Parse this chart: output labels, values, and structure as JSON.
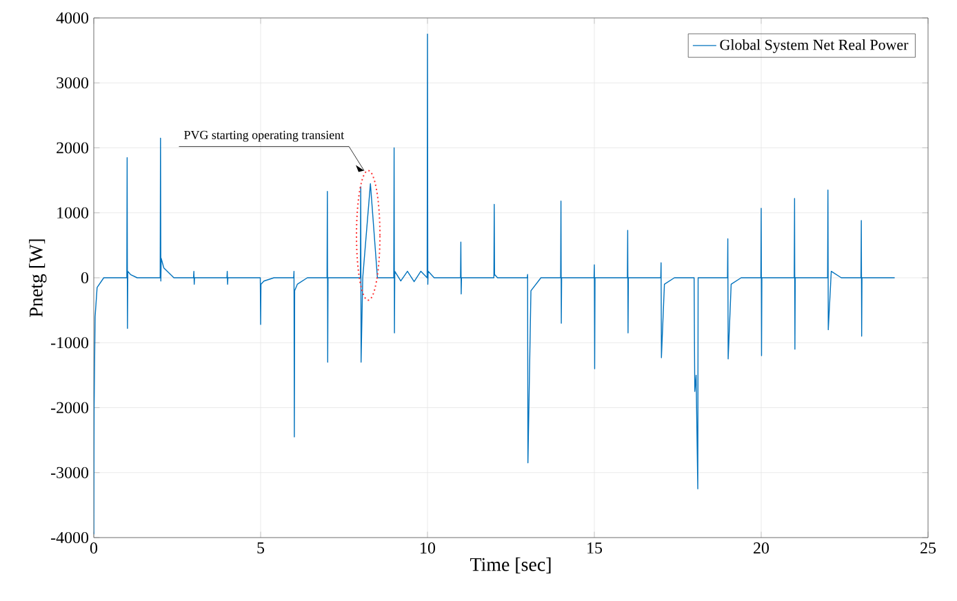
{
  "chart_data": {
    "type": "line",
    "xlabel": "Time [sec]",
    "ylabel": "Pnetg [W]",
    "xlim": [
      0,
      25
    ],
    "ylim": [
      -4000,
      4000
    ],
    "xticks": [
      0,
      5,
      10,
      15,
      20,
      25
    ],
    "yticks": [
      -4000,
      -3000,
      -2000,
      -1000,
      0,
      1000,
      2000,
      3000,
      4000
    ],
    "grid": true,
    "legend": "top right",
    "marker": "none",
    "line_style": "solid",
    "annotations": [
      "PVG starting operating transient"
    ],
    "series": [
      {
        "name": "Global System Net Real Power",
        "color": "#0072bd",
        "x": [
          0,
          0.01,
          0.04,
          0.1,
          0.3,
          0.99,
          1.0,
          1.01,
          1.02,
          1.1,
          1.3,
          1.99,
          2.0,
          2.01,
          2.02,
          2.1,
          2.4,
          2.99,
          3.0,
          3.01,
          3.02,
          3.99,
          4.0,
          4.01,
          4.02,
          4.99,
          5.0,
          5.01,
          5.1,
          5.4,
          5.99,
          6.0,
          6.01,
          6.02,
          6.1,
          6.4,
          6.99,
          7.0,
          7.01,
          7.02,
          7.99,
          8.0,
          8.01,
          8.06,
          8.29,
          8.5,
          8.99,
          9.0,
          9.01,
          9.02,
          9.2,
          9.4,
          9.6,
          9.8,
          9.99,
          10.0,
          10.01,
          10.02,
          10.2,
          10.99,
          11.0,
          11.01,
          11.02,
          11.99,
          12.0,
          12.01,
          12.1,
          12.99,
          13.0,
          13.01,
          13.1,
          13.4,
          13.99,
          14.0,
          14.01,
          14.02,
          14.99,
          15.0,
          15.01,
          15.02,
          15.99,
          16.0,
          16.01,
          16.02,
          16.99,
          17.0,
          17.01,
          17.1,
          17.4,
          17.99,
          18.0,
          18.01,
          18.05,
          18.1,
          18.11,
          18.2,
          18.99,
          19.0,
          19.01,
          19.1,
          19.4,
          19.99,
          20.0,
          20.01,
          20.02,
          20.99,
          21.0,
          21.01,
          21.02,
          21.99,
          22.0,
          22.01,
          22.1,
          22.4,
          22.99,
          23.0,
          23.01,
          23.02,
          24.0
        ],
        "values": [
          -3950,
          -2000,
          -600,
          -150,
          0,
          0,
          1850,
          -780,
          100,
          50,
          0,
          0,
          2150,
          -50,
          300,
          150,
          0,
          0,
          100,
          -100,
          0,
          0,
          100,
          -100,
          0,
          0,
          -720,
          -100,
          -50,
          0,
          0,
          100,
          -2450,
          -200,
          -100,
          0,
          0,
          1330,
          -1300,
          0,
          0,
          1400,
          -1300,
          0,
          1450,
          0,
          0,
          2000,
          -850,
          100,
          -50,
          100,
          -60,
          100,
          0,
          3750,
          -100,
          100,
          0,
          0,
          550,
          -250,
          0,
          0,
          1130,
          50,
          0,
          0,
          50,
          -2850,
          -200,
          0,
          0,
          1180,
          -700,
          0,
          0,
          200,
          -1400,
          0,
          0,
          730,
          -850,
          0,
          0,
          230,
          -1230,
          -100,
          0,
          0,
          -950,
          -1750,
          -1500,
          -3250,
          0,
          0,
          0,
          600,
          -1250,
          -100,
          0,
          0,
          1070,
          -1200,
          0,
          0,
          1220,
          -1100,
          0,
          0,
          1350,
          -800,
          100,
          0,
          0,
          880,
          -900,
          0,
          0
        ]
      }
    ]
  }
}
